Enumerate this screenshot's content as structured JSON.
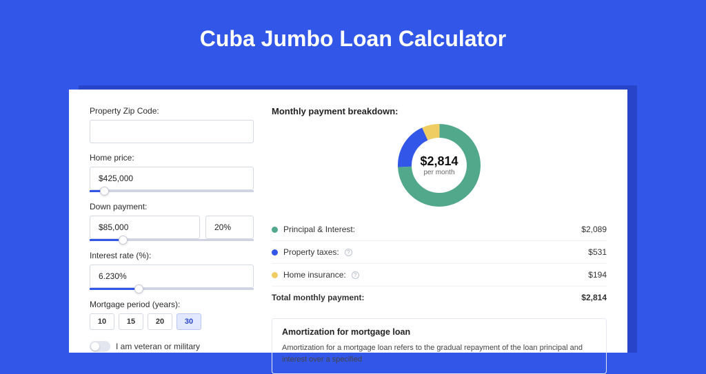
{
  "page": {
    "title": "Cuba Jumbo Loan Calculator",
    "bg_color": "#3256e8",
    "card_shadow_color": "#2844c8",
    "card_bg": "#ffffff"
  },
  "form": {
    "zip": {
      "label": "Property Zip Code:",
      "value": ""
    },
    "home_price": {
      "label": "Home price:",
      "value": "$425,000",
      "slider_pct": 9
    },
    "down_payment": {
      "label": "Down payment:",
      "value": "$85,000",
      "pct": "20%",
      "slider_pct": 20
    },
    "interest_rate": {
      "label": "Interest rate (%):",
      "value": "6.230%",
      "slider_pct": 30
    },
    "mortgage_period": {
      "label": "Mortgage period (years):",
      "options": [
        "10",
        "15",
        "20",
        "30"
      ],
      "selected": "30"
    },
    "veteran": {
      "label": "I am veteran or military",
      "on": false
    }
  },
  "breakdown": {
    "title": "Monthly payment breakdown:",
    "donut": {
      "total_label": "$2,814",
      "subtitle": "per month",
      "slices": [
        {
          "key": "pi",
          "label": "Principal & Interest:",
          "value": "$2,089",
          "color": "#52a88a",
          "pct": 74.2
        },
        {
          "key": "tax",
          "label": "Property taxes:",
          "value": "$531",
          "color": "#3256e8",
          "pct": 18.9,
          "info": true
        },
        {
          "key": "ins",
          "label": "Home insurance:",
          "value": "$194",
          "color": "#f0cd62",
          "pct": 6.9,
          "info": true
        }
      ],
      "thickness": 20
    },
    "total_row": {
      "label": "Total monthly payment:",
      "value": "$2,814"
    }
  },
  "amortization": {
    "title": "Amortization for mortgage loan",
    "text": "Amortization for a mortgage loan refers to the gradual repayment of the loan principal and interest over a specified"
  }
}
